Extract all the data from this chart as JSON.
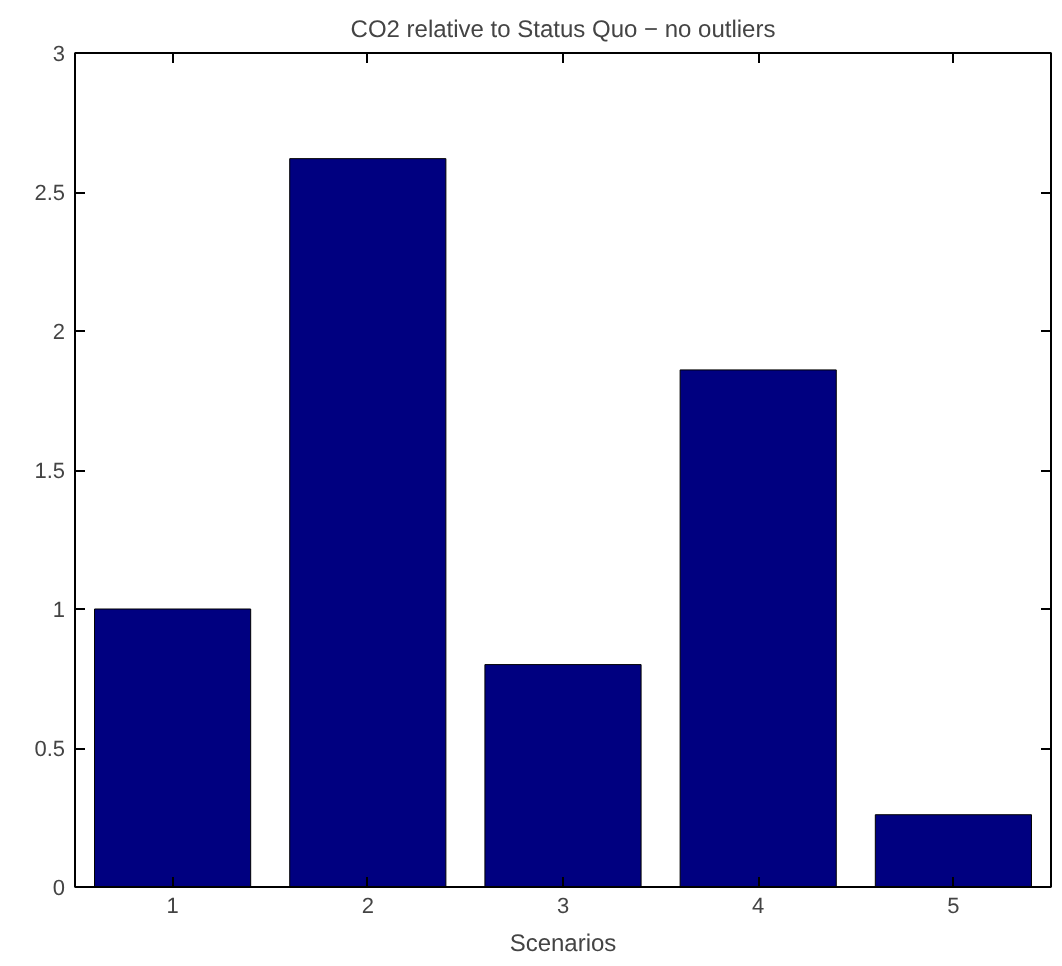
{
  "chart_data": {
    "type": "bar",
    "title": "CO2 relative to Status Quo − no outliers",
    "xlabel": "Scenarios",
    "x": [
      1,
      2,
      3,
      4,
      5
    ],
    "values": [
      1.0,
      2.62,
      0.8,
      1.86,
      0.26
    ],
    "color": "#000080",
    "xlim": [
      0.5,
      5.5
    ],
    "xticks": [
      1,
      2,
      3,
      4,
      5
    ],
    "ylim": [
      0,
      3
    ],
    "yticks": [
      0,
      0.5,
      1,
      1.5,
      2,
      2.5,
      3
    ],
    "grid": false
  }
}
